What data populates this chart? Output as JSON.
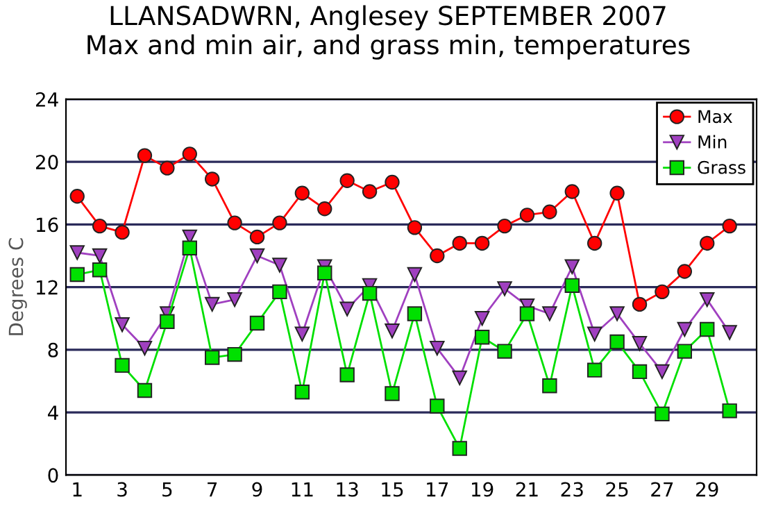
{
  "chart_data": {
    "type": "line",
    "title": "LLANSADWRN, Anglesey SEPTEMBER 2007\nMax and min air, and grass min, temperatures",
    "ylabel": "Degrees C",
    "x": [
      1,
      2,
      3,
      4,
      5,
      6,
      7,
      8,
      9,
      10,
      11,
      12,
      13,
      14,
      15,
      16,
      17,
      18,
      19,
      20,
      21,
      22,
      23,
      24,
      25,
      26,
      27,
      28,
      29,
      30
    ],
    "series": [
      {
        "name": "Max",
        "color": "#ff0000",
        "marker": "circle",
        "values": [
          17.8,
          15.9,
          15.5,
          20.4,
          19.6,
          20.5,
          18.9,
          16.1,
          15.2,
          16.1,
          18.0,
          17.0,
          18.8,
          18.1,
          18.7,
          15.8,
          14.0,
          14.8,
          14.8,
          15.9,
          16.6,
          16.8,
          18.1,
          14.8,
          18.0,
          10.9,
          11.7,
          13.0,
          14.8,
          15.9
        ]
      },
      {
        "name": "Min",
        "color": "#a040c0",
        "marker": "triangle",
        "values": [
          14.2,
          14.0,
          9.6,
          8.1,
          10.3,
          15.2,
          10.9,
          11.2,
          14.0,
          13.4,
          9.0,
          13.3,
          10.6,
          12.1,
          9.2,
          12.8,
          8.1,
          6.2,
          10.0,
          11.9,
          10.8,
          10.3,
          13.3,
          9.0,
          10.3,
          8.4,
          6.6,
          9.3,
          11.2,
          9.1
        ]
      },
      {
        "name": "Grass",
        "color": "#00e000",
        "marker": "square",
        "values": [
          12.8,
          13.1,
          7.0,
          5.4,
          9.8,
          14.5,
          7.5,
          7.7,
          9.7,
          11.7,
          5.3,
          12.9,
          6.4,
          11.6,
          5.2,
          10.3,
          4.4,
          1.7,
          8.8,
          7.9,
          10.3,
          5.7,
          12.1,
          6.7,
          8.5,
          6.6,
          3.9,
          7.9,
          9.3,
          4.1
        ]
      }
    ],
    "xlim": [
      0.5,
      31.2
    ],
    "xticks": [
      1,
      3,
      5,
      7,
      9,
      11,
      13,
      15,
      17,
      19,
      21,
      23,
      25,
      27,
      29
    ],
    "ylim": [
      0,
      24
    ],
    "yticks": [
      0,
      4,
      8,
      12,
      16,
      20,
      24
    ],
    "grid": "y",
    "legend": "top right"
  }
}
